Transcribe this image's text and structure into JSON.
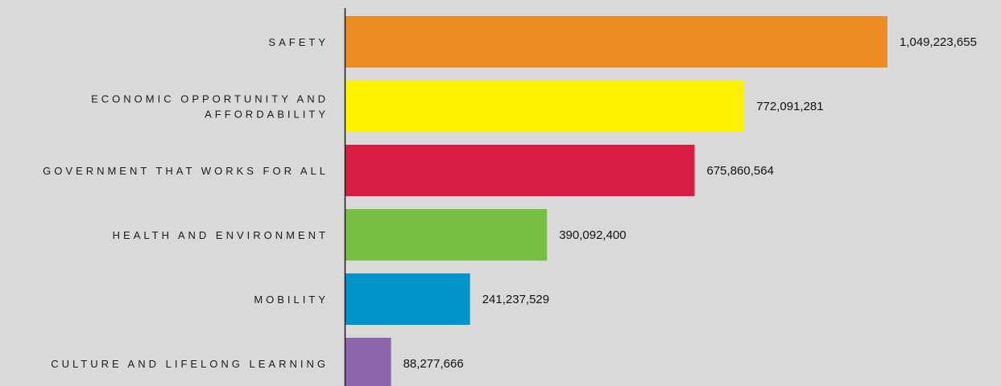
{
  "chart_data": {
    "type": "bar",
    "orientation": "horizontal",
    "categories": [
      "SAFETY",
      "ECONOMIC OPPORTUNITY AND AFFORDABILITY",
      "GOVERNMENT THAT WORKS FOR ALL",
      "HEALTH AND ENVIRONMENT",
      "MOBILITY",
      "CULTURE AND LIFELONG LEARNING"
    ],
    "category_lines": [
      [
        "SAFETY"
      ],
      [
        "ECONOMIC OPPORTUNITY AND",
        "AFFORDABILITY"
      ],
      [
        "GOVERNMENT THAT WORKS FOR ALL"
      ],
      [
        "HEALTH AND ENVIRONMENT"
      ],
      [
        "MOBILITY"
      ],
      [
        "CULTURE AND LIFELONG LEARNING"
      ]
    ],
    "values": [
      1049223655,
      772091281,
      675860564,
      390092400,
      241237529,
      88277666
    ],
    "value_labels": [
      "1,049,223,655",
      "772,091,281",
      "675,860,564",
      "390,092,400",
      "241,237,529",
      "88,277,666"
    ],
    "colors": [
      "#ec8c22",
      "#fff200",
      "#d91c43",
      "#76bf44",
      "#0096cc",
      "#8d66ad"
    ],
    "title": "",
    "xlabel": "",
    "ylabel": "",
    "xlim": [
      0,
      1049223655
    ],
    "grid": false,
    "legend": "none"
  }
}
